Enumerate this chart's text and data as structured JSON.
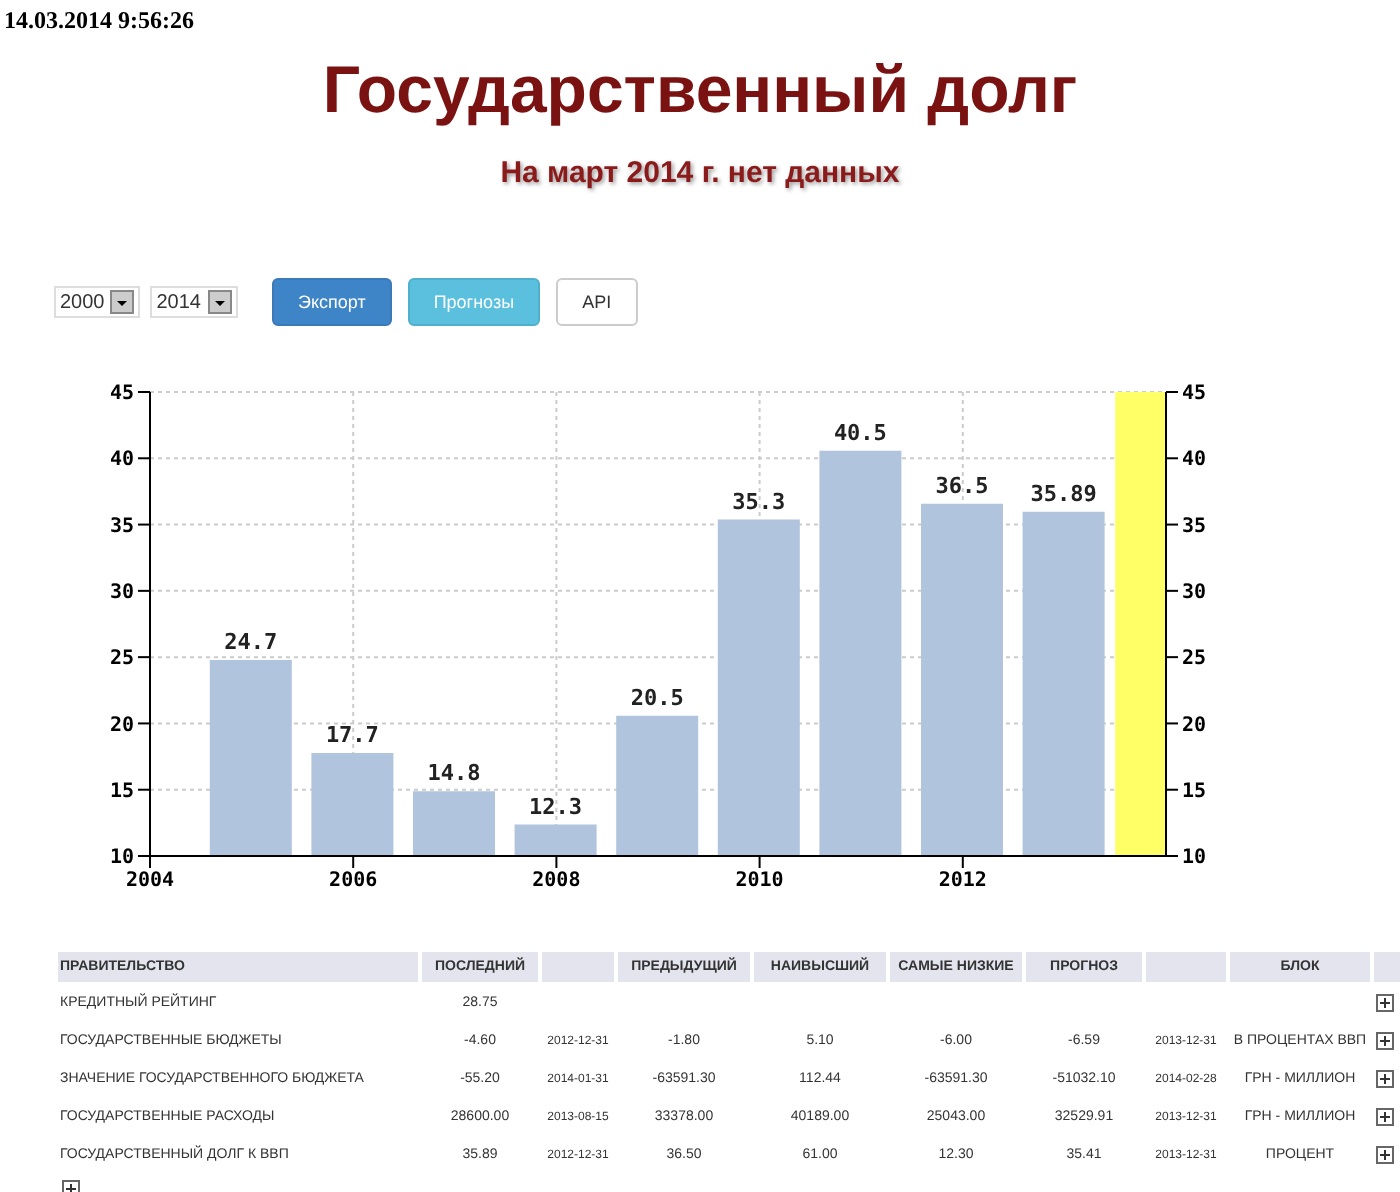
{
  "chart_data": [
    {
      "type": "bar",
      "title": "Государственный долг",
      "subtitle": "На март 2014 г. нет данных",
      "annotations": [
        "14.03.2014 9:56:26",
        "2000",
        "2014",
        "Экспорт",
        "Прогнозы",
        "API"
      ],
      "x": [
        2005,
        2006,
        2007,
        2008,
        2009,
        2010,
        2011,
        2012,
        2013
      ],
      "values": [
        24.7,
        17.7,
        14.8,
        12.3,
        20.5,
        35.3,
        40.5,
        36.5,
        35.89
      ],
      "color": "#b0c4de",
      "data_labels": true,
      "xlim": [
        2004,
        2014
      ],
      "xticks": [
        2004,
        2006,
        2008,
        2010,
        2012
      ],
      "ylim": [
        10,
        45
      ],
      "yticks": [
        10,
        15,
        20,
        25,
        30,
        35,
        40,
        45
      ],
      "y2lim": [
        10,
        45
      ],
      "y2ticks": [
        10,
        15,
        20,
        25,
        30,
        35,
        40,
        45
      ],
      "bands": [
        {
          "axis": "x",
          "from": 2013.5,
          "to": 2014,
          "color": "#ffff66"
        }
      ],
      "grid": true,
      "legend": false
    },
    {
      "type": "other",
      "ylabel": "ПРАВИТЕЛЬСТВО",
      "categories": [
        "КРЕДИТНЫЙ РЕЙТИНГ",
        "ГОСУДАРСТВЕННЫЕ БЮДЖЕТЫ",
        "ЗНАЧЕНИЕ ГОСУДАРСТВЕННОГО БЮДЖЕТА",
        "ГОСУДАРСТВЕННЫЕ РАСХОДЫ",
        "ГОСУДАРСТВЕННЫЙ ДОЛГ К ВВП"
      ],
      "series": [
        {
          "name": "ПОСЛЕДНИЙ",
          "values": [
            null,
            null,
            null,
            null,
            null
          ],
          "value_labels": [
            "28.75",
            "-4.60",
            "-55.20",
            "28600.00",
            "35.89"
          ]
        },
        {
          "values": [
            null,
            null,
            null,
            null,
            null
          ],
          "value_labels": [
            null,
            "2012-12-31",
            "2014-01-31",
            "2013-08-15",
            "2012-12-31"
          ]
        },
        {
          "name": "ПРЕДЫДУЩИЙ",
          "values": [
            null,
            null,
            null,
            null,
            null
          ],
          "value_labels": [
            null,
            "-1.80",
            "-63591.30",
            "33378.00",
            "36.50"
          ]
        },
        {
          "name": "НАИВЫСШИЙ",
          "values": [
            null,
            null,
            null,
            null,
            null
          ],
          "value_labels": [
            null,
            "5.10",
            "112.44",
            "40189.00",
            "61.00"
          ]
        },
        {
          "name": "САМЫЕ НИЗКИЕ",
          "values": [
            null,
            null,
            null,
            null,
            null
          ],
          "value_labels": [
            null,
            "-6.00",
            "-63591.30",
            "25043.00",
            "12.30"
          ]
        },
        {
          "name": "ПРОГНОЗ",
          "values": [
            null,
            null,
            null,
            null,
            null
          ],
          "value_labels": [
            null,
            "-6.59",
            "-51032.10",
            "32529.91",
            "35.41"
          ]
        },
        {
          "values": [
            null,
            null,
            null,
            null,
            null
          ],
          "value_labels": [
            null,
            "2013-12-31",
            "2014-02-28",
            "2013-12-31",
            "2013-12-31"
          ]
        },
        {
          "name": "БЛОК",
          "values": [
            null,
            null,
            null,
            null,
            null
          ],
          "value_labels": [
            null,
            "В ПРОЦЕНТАХ ВВП",
            "ГРН - МИЛЛИОН",
            "ГРН - МИЛЛИОН",
            "ПРОЦЕНТ"
          ]
        }
      ]
    }
  ]
}
